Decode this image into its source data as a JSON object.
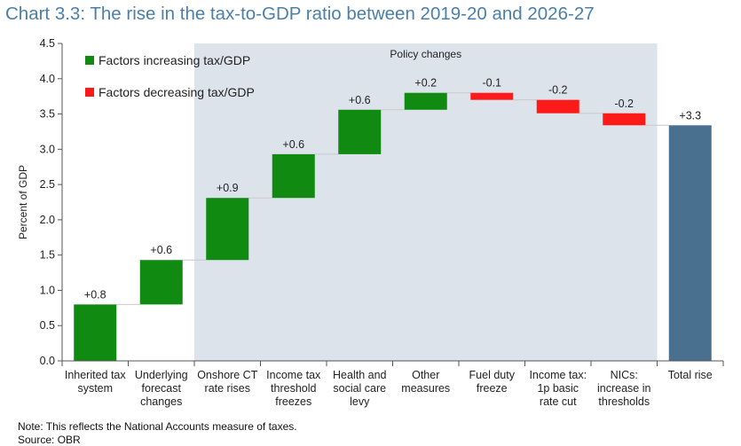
{
  "title": "Chart 3.3: The rise in the tax-to-GDP ratio between 2019-20 and 2026-27",
  "note": "Note: This reflects the National Accounts measure of taxes.",
  "source": "Source: OBR",
  "colors": {
    "increase": "#118a11",
    "decrease": "#ff1a1a",
    "total": "#4a7090",
    "shade": "#dce3ea",
    "title": "#4b7fa8"
  },
  "chart_data": {
    "type": "bar",
    "subtype": "waterfall",
    "ylabel": "Percent of GDP",
    "ylim": [
      0,
      4.5
    ],
    "yticks": [
      "0.0",
      "0.5",
      "1.0",
      "1.5",
      "2.0",
      "2.5",
      "3.0",
      "3.5",
      "4.0",
      "4.5"
    ],
    "shaded_region_label": "Policy changes",
    "shaded_region_categories": [
      2,
      8
    ],
    "legend": [
      {
        "label": "Factors increasing tax/GDP",
        "kind": "increase"
      },
      {
        "label": "Factors decreasing tax/GDP",
        "kind": "decrease"
      }
    ],
    "legend_placement": "top-left",
    "bars": [
      {
        "lines": [
          "Inherited tax",
          "system"
        ],
        "start": 0.0,
        "end": 0.8,
        "label": "+0.8",
        "kind": "increase"
      },
      {
        "lines": [
          "Underlying",
          "forecast",
          "changes"
        ],
        "start": 0.8,
        "end": 1.43,
        "label": "+0.6",
        "kind": "increase"
      },
      {
        "lines": [
          "Onshore CT",
          "rate rises"
        ],
        "start": 1.43,
        "end": 2.31,
        "label": "+0.9",
        "kind": "increase"
      },
      {
        "lines": [
          "Income tax",
          "threshold",
          "freezes"
        ],
        "start": 2.31,
        "end": 2.93,
        "label": "+0.6",
        "kind": "increase"
      },
      {
        "lines": [
          "Health and",
          "social care",
          "levy"
        ],
        "start": 2.93,
        "end": 3.56,
        "label": "+0.6",
        "kind": "increase"
      },
      {
        "lines": [
          "Other",
          "measures"
        ],
        "start": 3.56,
        "end": 3.8,
        "label": "+0.2",
        "kind": "increase"
      },
      {
        "lines": [
          "Fuel duty",
          "freeze"
        ],
        "start": 3.8,
        "end": 3.7,
        "label": "-0.1",
        "kind": "decrease"
      },
      {
        "lines": [
          "Income tax:",
          "1p basic",
          "rate cut"
        ],
        "start": 3.7,
        "end": 3.51,
        "label": "-0.2",
        "kind": "decrease"
      },
      {
        "lines": [
          "NICs:",
          "increase in",
          "thresholds"
        ],
        "start": 3.51,
        "end": 3.34,
        "label": "-0.2",
        "kind": "decrease"
      },
      {
        "lines": [
          "Total rise"
        ],
        "start": 0.0,
        "end": 3.34,
        "label": "+3.3",
        "kind": "total"
      }
    ]
  }
}
